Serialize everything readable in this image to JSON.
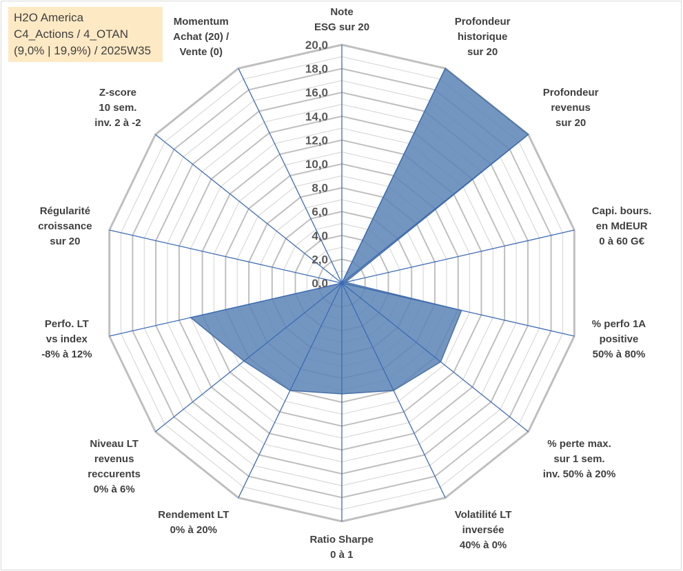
{
  "info_box": {
    "line1": "H2O America",
    "line2": "C4_Actions / 4_OTAN",
    "line3": "(9,0% | 19,9%) / 2025W35"
  },
  "chart_data": {
    "type": "radar",
    "title": "",
    "rmin": 0,
    "rmax": 20,
    "tick_step": 2,
    "ticks": [
      "0,0",
      "2,0",
      "4,0",
      "6,0",
      "8,0",
      "10,0",
      "12,0",
      "14,0",
      "16,0",
      "18,0",
      "20,0"
    ],
    "grid": true,
    "axes": [
      {
        "lines": [
          "Note",
          "ESG sur 20"
        ],
        "value": 0.0
      },
      {
        "lines": [
          "Profondeur",
          "historique",
          "sur 20"
        ],
        "value": 20.0
      },
      {
        "lines": [
          "Profondeur",
          "revenus",
          "sur 20"
        ],
        "value": 20.0
      },
      {
        "lines": [
          "Capi. bours.",
          "en MdEUR",
          "0 à 60 G€"
        ],
        "value": 0.3
      },
      {
        "lines": [
          "% perfo 1A",
          "positive",
          "50% à 80%"
        ],
        "value": 10.3
      },
      {
        "lines": [
          "% perte max.",
          "sur 1 sem.",
          "inv. 50% à 20%"
        ],
        "value": 10.6
      },
      {
        "lines": [
          "Volatilité LT",
          "inversée",
          "40% à 0%"
        ],
        "value": 10.0
      },
      {
        "lines": [
          "Ratio Sharpe",
          "0 à 1"
        ],
        "value": 9.3
      },
      {
        "lines": [
          "Rendement LT",
          "0% à 20%"
        ],
        "value": 10.0
      },
      {
        "lines": [
          "Niveau LT",
          "revenus",
          "reccurents",
          "0% à 6%"
        ],
        "value": 10.5
      },
      {
        "lines": [
          "Perfo. LT",
          "vs index",
          "-8% à 12%"
        ],
        "value": 13.0
      },
      {
        "lines": [
          "Régularité",
          "croissance",
          "sur 20"
        ],
        "value": 0.0
      },
      {
        "lines": [
          "Z-score",
          "10 sem.",
          "inv. 2 à -2"
        ],
        "value": 0.0
      },
      {
        "lines": [
          "Momentum",
          "Achat (20) /",
          "Vente (0)"
        ],
        "value": 0.0
      }
    ],
    "colors": {
      "fill": "#5b84b6",
      "stroke": "#4a72a8",
      "spoke": "#3c6bb4",
      "grid_major": "#bfbfbf",
      "grid_minor": "#d9d9d9"
    }
  }
}
